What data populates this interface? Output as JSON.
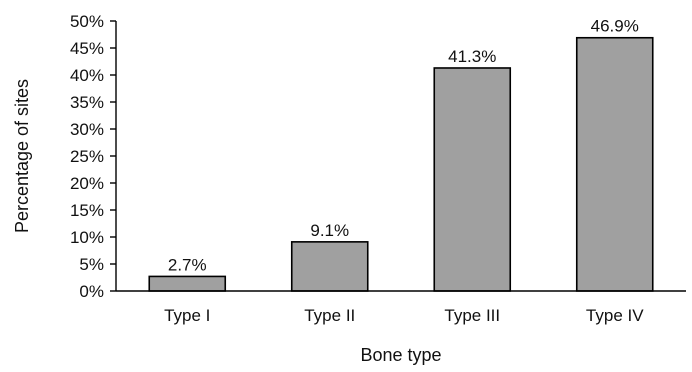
{
  "chart_data": {
    "type": "bar",
    "categories": [
      "Type I",
      "Type II",
      "Type III",
      "Type IV"
    ],
    "values": [
      2.7,
      9.1,
      41.3,
      46.9
    ],
    "data_labels": [
      "2.7%",
      "9.1%",
      "41.3%",
      "46.9%"
    ],
    "title": "",
    "xlabel": "Bone type",
    "ylabel": "Percentage of sites",
    "ylim": [
      0,
      50
    ],
    "yticks": [
      0,
      5,
      10,
      15,
      20,
      25,
      30,
      35,
      40,
      45,
      50
    ],
    "ytick_labels": [
      "0%",
      "5%",
      "10%",
      "15%",
      "20%",
      "25%",
      "30%",
      "35%",
      "40%",
      "45%",
      "50%"
    ],
    "grid": false,
    "legend": "none",
    "colors": {
      "bar_fill": "#a0a0a0",
      "bar_stroke": "#000000",
      "axis": "#000000",
      "text": "#111111"
    }
  }
}
